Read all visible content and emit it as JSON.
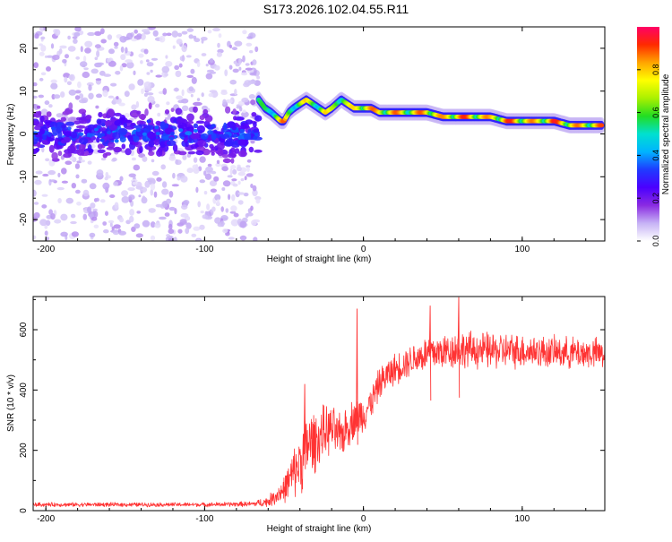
{
  "title": "S173.2026.102.04.55.R11",
  "chart_data": [
    {
      "type": "heatmap",
      "xlabel": "Height of straight line (km)",
      "ylabel": "Frequency (Hz)",
      "xlim": [
        -208,
        152
      ],
      "ylim": [
        -25,
        25
      ],
      "xticks": [
        -200,
        -100,
        0,
        100
      ],
      "yticks": [
        -20,
        -10,
        0,
        10,
        20
      ],
      "colorbar": {
        "label": "Normalized spectral amplitude",
        "range": [
          0.0,
          1.0
        ],
        "ticks": [
          "0.0",
          "0.2",
          "0.4",
          "0.6",
          "0.8"
        ],
        "tick_values": [
          0.0,
          0.2,
          0.4,
          0.6,
          0.8
        ],
        "colors": [
          "#ffffff",
          "#c6b2f5",
          "#8a2be2",
          "#4b00ff",
          "#1f3bff",
          "#00b4ff",
          "#00e0d0",
          "#22dd22",
          "#aaf000",
          "#ffff00",
          "#ffa500",
          "#ff2a00",
          "#ff0066"
        ]
      },
      "noise_region_x": [
        -208,
        -66
      ],
      "ridge": {
        "x": [
          -66,
          -62,
          -58,
          -55,
          -52,
          -50,
          -47,
          -44,
          -40,
          -36,
          -32,
          -28,
          -24,
          -20,
          -17,
          -14,
          -10,
          -6,
          -2,
          0,
          5,
          10,
          20,
          30,
          40,
          50,
          60,
          70,
          80,
          90,
          100,
          110,
          120,
          130,
          140,
          150
        ],
        "y": [
          8,
          6,
          5,
          4,
          3,
          3,
          5,
          6,
          7,
          8,
          7,
          6,
          5,
          6,
          7,
          8,
          7,
          6,
          6,
          6,
          6,
          5,
          5,
          5,
          5,
          4,
          4,
          4,
          4,
          3,
          3,
          3,
          3,
          2,
          2,
          2
        ],
        "amp": [
          0.55,
          0.6,
          0.7,
          0.75,
          0.85,
          0.9,
          0.65,
          0.7,
          0.75,
          0.8,
          0.7,
          0.75,
          0.85,
          0.7,
          0.75,
          0.8,
          0.75,
          0.8,
          0.9,
          0.95,
          0.9,
          0.85,
          0.9,
          0.8,
          0.95,
          0.85,
          0.95,
          0.9,
          0.85,
          0.95,
          0.9,
          0.85,
          0.95,
          0.9,
          0.85,
          0.9
        ]
      }
    },
    {
      "type": "line",
      "xlabel": "Height of straight line (km)",
      "ylabel": "SNR (10 * v/v)",
      "xlim": [
        -208,
        152
      ],
      "ylim": [
        0,
        710
      ],
      "xticks": [
        -200,
        -100,
        0,
        100
      ],
      "yticks": [
        0,
        200,
        400,
        600
      ],
      "color": "#ff3333",
      "series": [
        {
          "name": "SNR",
          "x": [
            -208,
            -150,
            -100,
            -70,
            -60,
            -50,
            -40,
            -35,
            -30,
            -25,
            -20,
            -15,
            -10,
            -5,
            0,
            5,
            10,
            15,
            20,
            30,
            40,
            60,
            80,
            100,
            120,
            152
          ],
          "baseline": [
            20,
            20,
            20,
            22,
            30,
            70,
            160,
            220,
            230,
            260,
            270,
            240,
            280,
            310,
            320,
            360,
            420,
            450,
            470,
            500,
            520,
            535,
            530,
            530,
            525,
            520
          ],
          "noise": [
            8,
            8,
            8,
            10,
            20,
            50,
            120,
            140,
            110,
            100,
            90,
            90,
            80,
            80,
            70,
            60,
            60,
            60,
            60,
            60,
            70,
            70,
            70,
            65,
            60,
            60
          ]
        }
      ],
      "spikes": [
        {
          "x": -37,
          "y": 420
        },
        {
          "x": -4,
          "y": 670
        },
        {
          "x": 60,
          "y": 708
        },
        {
          "x": 42,
          "y": 680
        }
      ]
    }
  ]
}
